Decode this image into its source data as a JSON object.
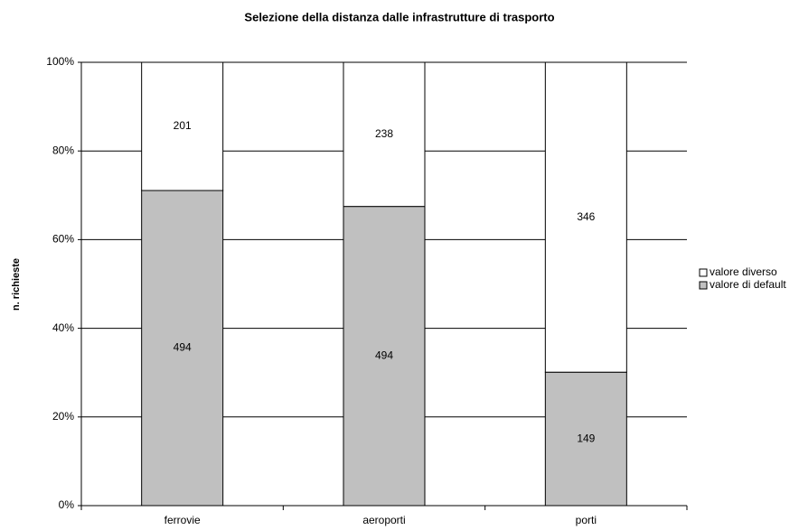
{
  "chart_data": {
    "type": "stacked_percent_bar",
    "title": "Selezione della distanza dalle infrastrutture di trasporto",
    "y_label": "n. richieste",
    "categories": [
      "ferrovie",
      "aeroporti",
      "porti"
    ],
    "series": [
      {
        "name": "valore di default",
        "color": "#c0c0c0",
        "values": [
          494,
          494,
          149
        ]
      },
      {
        "name": "valore diverso",
        "color": "#ffffff",
        "values": [
          201,
          238,
          346
        ]
      }
    ],
    "ylim": [
      0,
      100
    ],
    "yticks": [
      {
        "value": 0,
        "label": "0%"
      },
      {
        "value": 20,
        "label": "20%"
      },
      {
        "value": 40,
        "label": "40%"
      },
      {
        "value": 60,
        "label": "60%"
      },
      {
        "value": 80,
        "label": "80%"
      },
      {
        "value": 100,
        "label": "100%"
      }
    ],
    "grid": true,
    "legend": "right"
  }
}
